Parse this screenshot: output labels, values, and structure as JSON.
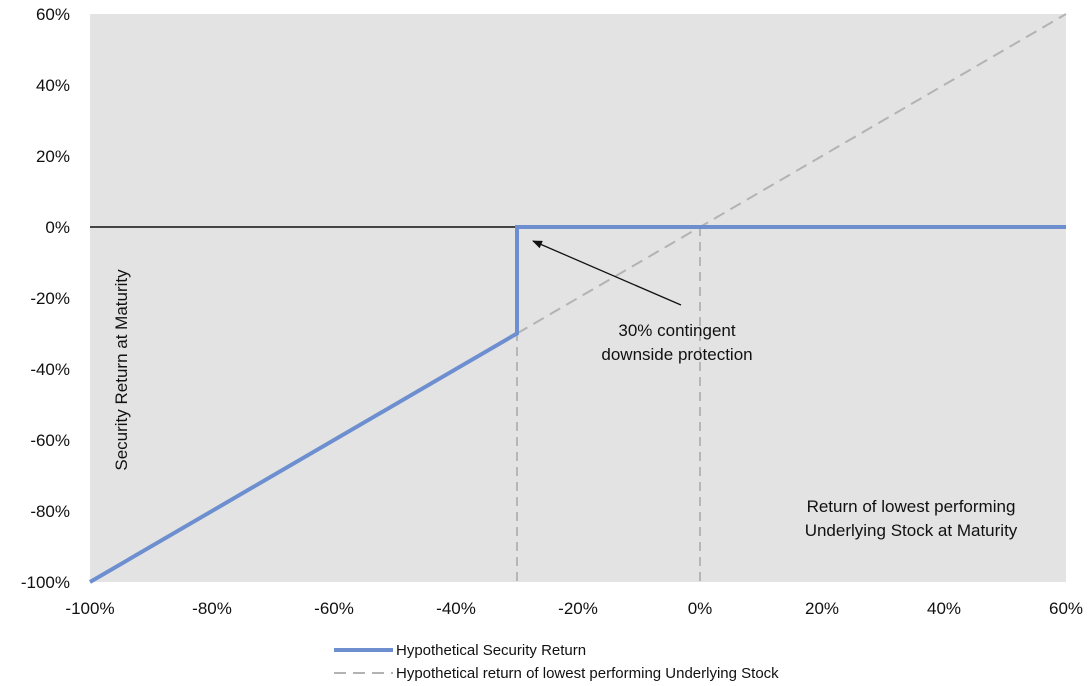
{
  "chart_data": {
    "type": "line",
    "x": [
      -100,
      -30,
      -30,
      0,
      60
    ],
    "series": [
      {
        "name": "Hypothetical Security Return",
        "points": [
          [
            -100,
            -100
          ],
          [
            -30,
            -30
          ],
          [
            -30,
            0
          ],
          [
            0,
            0
          ],
          [
            60,
            0
          ]
        ],
        "style": "solid",
        "color": "#6d8fd0"
      },
      {
        "name": "Hypothetical return of lowest performing Underlying Stock",
        "points": [
          [
            -100,
            -100
          ],
          [
            60,
            60
          ]
        ],
        "style": "dashed",
        "color": "#b3b3b3"
      }
    ],
    "xlim": [
      -100,
      60
    ],
    "ylim": [
      -100,
      60
    ],
    "x_ticks": [
      -100,
      -80,
      -60,
      -40,
      -20,
      0,
      20,
      40,
      60
    ],
    "y_ticks": [
      60,
      40,
      20,
      0,
      -20,
      -40,
      -60,
      -80,
      -100
    ],
    "x_tick_labels": [
      "-100%",
      "-80%",
      "-60%",
      "-40%",
      "-20%",
      "0%",
      "20%",
      "40%",
      "60%"
    ],
    "y_tick_labels": [
      "60%",
      "40%",
      "20%",
      "0%",
      "-20%",
      "-40%",
      "-60%",
      "-80%",
      "-100%"
    ],
    "ylabel": "Security Return at Maturity",
    "xlabel_lines": [
      "Return of lowest performing",
      "Underlying Stock at Maturity"
    ],
    "annotation": {
      "lines": [
        "30% contingent",
        "downside protection"
      ],
      "arrow_to": [
        -30,
        0
      ]
    },
    "reference_lines": {
      "vertical_dashed_at": [
        -30,
        0
      ],
      "horizontal_solid_at": 0
    },
    "grid": false,
    "background": "#e3e3e3",
    "legend_position": "bottom-center"
  }
}
